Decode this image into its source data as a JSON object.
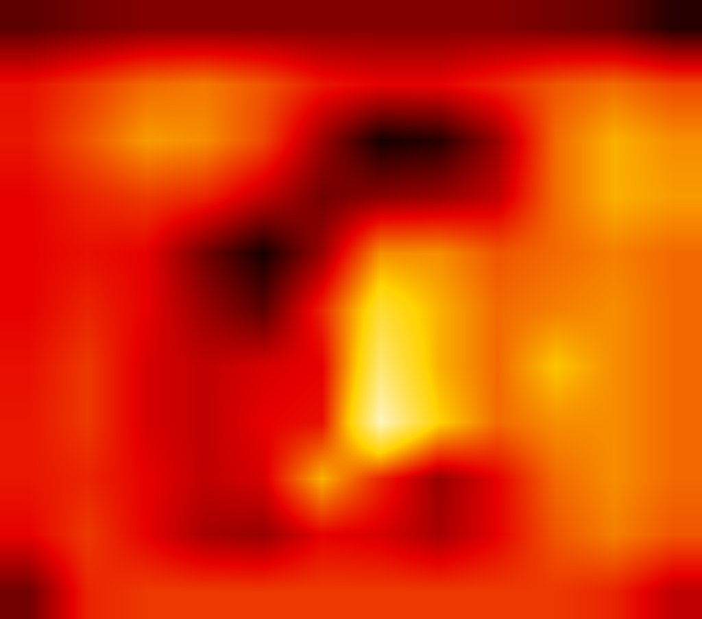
{
  "chart_data": {
    "type": "heatmap",
    "color": "Hot",
    "zlim": [
      0,
      1
    ],
    "tick_labels": false,
    "grid": false,
    "z": [
      [
        0.12,
        0.15,
        0.17,
        0.17,
        0.17,
        0.17,
        0.17,
        0.17,
        0.17,
        0.15,
        0.13,
        0.05
      ],
      [
        0.32,
        0.38,
        0.45,
        0.47,
        0.42,
        0.33,
        0.3,
        0.3,
        0.35,
        0.42,
        0.45,
        0.4
      ],
      [
        0.33,
        0.42,
        0.52,
        0.5,
        0.4,
        0.2,
        0.03,
        0.05,
        0.2,
        0.45,
        0.55,
        0.5
      ],
      [
        0.3,
        0.35,
        0.38,
        0.35,
        0.25,
        0.15,
        0.18,
        0.2,
        0.25,
        0.45,
        0.55,
        0.52
      ],
      [
        0.3,
        0.32,
        0.3,
        0.15,
        0.03,
        0.2,
        0.5,
        0.5,
        0.42,
        0.45,
        0.48,
        0.45
      ],
      [
        0.3,
        0.35,
        0.3,
        0.2,
        0.12,
        0.35,
        0.68,
        0.55,
        0.45,
        0.48,
        0.5,
        0.45
      ],
      [
        0.32,
        0.38,
        0.28,
        0.25,
        0.28,
        0.3,
        0.78,
        0.55,
        0.45,
        0.58,
        0.5,
        0.45
      ],
      [
        0.33,
        0.38,
        0.28,
        0.25,
        0.3,
        0.32,
        0.9,
        0.6,
        0.45,
        0.5,
        0.5,
        0.45
      ],
      [
        0.33,
        0.35,
        0.3,
        0.25,
        0.28,
        0.55,
        0.35,
        0.2,
        0.3,
        0.45,
        0.5,
        0.45
      ],
      [
        0.3,
        0.38,
        0.3,
        0.22,
        0.2,
        0.3,
        0.28,
        0.22,
        0.3,
        0.42,
        0.48,
        0.42
      ],
      [
        0.15,
        0.35,
        0.38,
        0.38,
        0.38,
        0.38,
        0.38,
        0.38,
        0.38,
        0.38,
        0.35,
        0.25
      ]
    ]
  }
}
